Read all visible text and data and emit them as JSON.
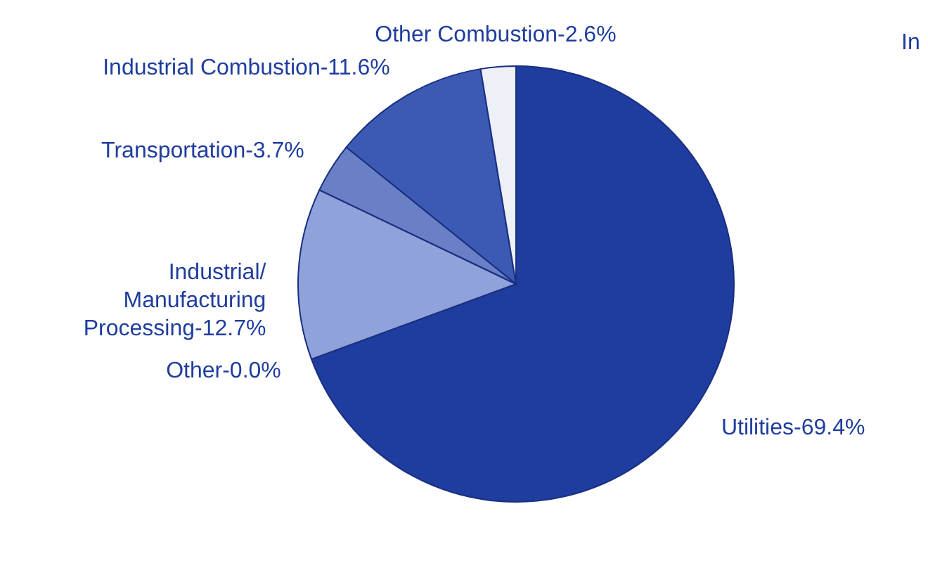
{
  "chart_data": {
    "type": "pie",
    "categories": [
      "Utilities-69.4%",
      "Other-0.0%",
      "Industrial/ Manufacturing Processing-12.7%",
      "Transportation-3.7%",
      "Industrial Combustion-11.6%",
      "Other Combustion-2.6%"
    ],
    "values": [
      69.4,
      0.0,
      12.7,
      3.7,
      11.6,
      2.6
    ],
    "colors": [
      "#1f3d9e",
      "#1f3d9e",
      "#90a2da",
      "#6a80c6",
      "#3c5ab4",
      "#eef0f8"
    ],
    "annotations": [
      "In"
    ]
  }
}
